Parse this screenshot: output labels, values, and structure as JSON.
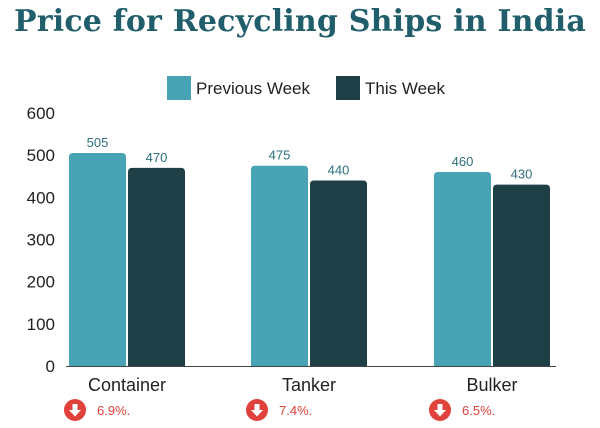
{
  "chart_data": {
    "type": "bar",
    "title": "Price for Recycling Ships in India",
    "categories": [
      "Container",
      "Tanker",
      "Bulker"
    ],
    "series": [
      {
        "name": "Previous Week",
        "values": [
          505,
          475,
          460
        ],
        "color": "#48a3b5",
        "label_color": "#2b6f7c"
      },
      {
        "name": "This Week",
        "values": [
          470,
          440,
          430
        ],
        "color": "#1d3f45",
        "label_color": "#2b6f7c"
      }
    ],
    "ylim": [
      0,
      600
    ],
    "yticks": [
      0,
      100,
      200,
      300,
      400,
      500,
      600
    ],
    "legend_position": "top-center",
    "grid": false,
    "changes": [
      {
        "text": "6.9%.",
        "direction": "down"
      },
      {
        "text": "7.4%.",
        "direction": "down"
      },
      {
        "text": "6.5%.",
        "direction": "down"
      }
    ],
    "change_color": "#e0413b"
  }
}
